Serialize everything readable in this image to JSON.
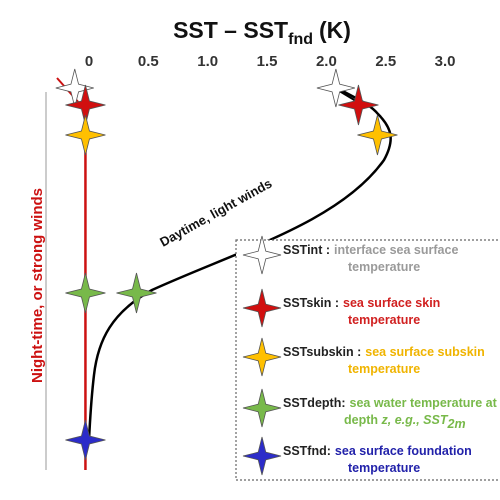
{
  "title": {
    "main": "SST – SST",
    "sub": "fnd",
    "unit": "(K)"
  },
  "x_axis": {
    "min": 0,
    "max": 3.0,
    "ticks": [
      {
        "value": 0,
        "label": "0"
      },
      {
        "value": 0.5,
        "label": "0.5"
      },
      {
        "value": 1.0,
        "label": "1.0"
      },
      {
        "value": 1.5,
        "label": "1.5"
      },
      {
        "value": 2.0,
        "label": "2.0"
      },
      {
        "value": 2.5,
        "label": "2.5"
      },
      {
        "value": 3.0,
        "label": "3.0"
      }
    ]
  },
  "profiles": {
    "night": {
      "label": "Night-time, or strong winds",
      "color": "#cc1111"
    },
    "day": {
      "label": "Daytime, light winds",
      "color": "#000000"
    }
  },
  "markers": [
    {
      "type": "int",
      "profile": "night",
      "value": -0.12,
      "level": "int"
    },
    {
      "type": "skin",
      "profile": "night",
      "value": -0.03,
      "level": "skin"
    },
    {
      "type": "subskin",
      "profile": "night",
      "value": -0.03,
      "level": "subskin"
    },
    {
      "type": "depth",
      "profile": "night",
      "value": -0.03,
      "level": "depth"
    },
    {
      "type": "fnd",
      "profile": "night",
      "value": -0.03,
      "level": "fnd"
    },
    {
      "type": "int",
      "profile": "day",
      "value": 2.08,
      "level": "int"
    },
    {
      "type": "skin",
      "profile": "day",
      "value": 2.27,
      "level": "skin"
    },
    {
      "type": "subskin",
      "profile": "day",
      "value": 2.43,
      "level": "subskin"
    },
    {
      "type": "depth",
      "profile": "day",
      "value": 0.4,
      "level": "depth"
    }
  ],
  "marker_colors": {
    "int": "#ffffff",
    "skin": "#d10f0f",
    "subskin": "#ffc000",
    "depth": "#78b94a",
    "fnd": "#2c2cc9"
  },
  "legend": {
    "items": [
      {
        "type": "int",
        "name": "SSTint :",
        "parts": [
          {
            "text": "interface ",
            "color": "#9a9a9a"
          },
          {
            "text": "sea surface",
            "color": "#9a9a9a"
          }
        ],
        "line2": [
          {
            "text": "temperature",
            "color": "#9a9a9a"
          }
        ]
      },
      {
        "type": "skin",
        "name": "SSTskin :",
        "parts": [
          {
            "text": "sea surface skin",
            "color": "#d12020"
          }
        ],
        "line2": [
          {
            "text": "temperature",
            "color": "#d12020"
          }
        ]
      },
      {
        "type": "subskin",
        "name": "SSTsubskin :",
        "parts": [
          {
            "text": "sea surface subskin",
            "color": "#f0b400"
          }
        ],
        "line2": [
          {
            "text": "temperature",
            "color": "#f0b400"
          }
        ]
      },
      {
        "type": "depth",
        "name": "SSTdepth:",
        "parts": [
          {
            "text": "sea water temperature at",
            "color": "#78b94a"
          }
        ],
        "line2": [
          {
            "text": "depth ",
            "color": "#78b94a"
          },
          {
            "text": "z, e.g., SST",
            "color": "#78b94a",
            "italic": true
          },
          {
            "text": "2m",
            "color": "#78b94a",
            "italic": true,
            "sub": true
          }
        ]
      },
      {
        "type": "fnd",
        "name": "SSTfnd:",
        "parts": [
          {
            "text": "sea surface foundation",
            "color": "#2222aa"
          }
        ],
        "line2": [
          {
            "text": "temperature",
            "color": "#2222aa"
          }
        ]
      }
    ]
  }
}
